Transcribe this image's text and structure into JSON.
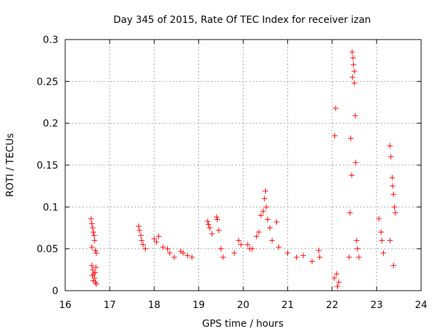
{
  "chart_data": {
    "type": "scatter",
    "title": "Day 345 of 2015, Rate Of TEC Index for receiver izan",
    "xlabel": "GPS time / hours",
    "ylabel": "ROTI / TECUs",
    "xlim": [
      16,
      24
    ],
    "ylim": [
      0,
      0.3
    ],
    "x_ticks": [
      16,
      17,
      18,
      19,
      20,
      21,
      22,
      23,
      24
    ],
    "y_ticks": [
      0,
      0.05,
      0.1,
      0.15,
      0.2,
      0.25,
      0.3
    ],
    "x_tick_labels": [
      "16",
      "17",
      "18",
      "19",
      "20",
      "21",
      "22",
      "23",
      "24"
    ],
    "y_tick_labels": [
      "0",
      "0.05",
      "0.1",
      "0.15",
      "0.2",
      "0.25",
      "0.3"
    ],
    "grid": true,
    "marker": "+",
    "marker_color": "#ff0000",
    "series": [
      {
        "name": "ROTI",
        "points": [
          [
            16.58,
            0.086
          ],
          [
            16.6,
            0.08
          ],
          [
            16.62,
            0.075
          ],
          [
            16.63,
            0.07
          ],
          [
            16.65,
            0.066
          ],
          [
            16.66,
            0.06
          ],
          [
            16.6,
            0.052
          ],
          [
            16.68,
            0.048
          ],
          [
            16.7,
            0.045
          ],
          [
            16.6,
            0.03
          ],
          [
            16.62,
            0.025
          ],
          [
            16.64,
            0.02
          ],
          [
            16.66,
            0.015
          ],
          [
            16.68,
            0.01
          ],
          [
            16.7,
            0.008
          ],
          [
            16.63,
            0.012
          ],
          [
            16.67,
            0.022
          ],
          [
            16.61,
            0.018
          ],
          [
            16.69,
            0.028
          ],
          [
            17.65,
            0.077
          ],
          [
            17.67,
            0.072
          ],
          [
            17.7,
            0.066
          ],
          [
            17.72,
            0.06
          ],
          [
            17.75,
            0.055
          ],
          [
            17.8,
            0.05
          ],
          [
            18.0,
            0.062
          ],
          [
            18.05,
            0.058
          ],
          [
            18.1,
            0.065
          ],
          [
            18.2,
            0.052
          ],
          [
            18.3,
            0.05
          ],
          [
            18.35,
            0.045
          ],
          [
            18.45,
            0.04
          ],
          [
            18.6,
            0.047
          ],
          [
            18.65,
            0.045
          ],
          [
            18.75,
            0.042
          ],
          [
            18.85,
            0.04
          ],
          [
            19.2,
            0.083
          ],
          [
            19.22,
            0.079
          ],
          [
            19.25,
            0.075
          ],
          [
            19.3,
            0.068
          ],
          [
            19.4,
            0.088
          ],
          [
            19.42,
            0.085
          ],
          [
            19.45,
            0.072
          ],
          [
            19.5,
            0.05
          ],
          [
            19.55,
            0.04
          ],
          [
            19.8,
            0.045
          ],
          [
            19.9,
            0.06
          ],
          [
            19.95,
            0.055
          ],
          [
            20.1,
            0.055
          ],
          [
            20.15,
            0.05
          ],
          [
            20.2,
            0.05
          ],
          [
            20.3,
            0.065
          ],
          [
            20.35,
            0.07
          ],
          [
            20.4,
            0.09
          ],
          [
            20.45,
            0.095
          ],
          [
            20.48,
            0.11
          ],
          [
            20.5,
            0.119
          ],
          [
            20.52,
            0.1
          ],
          [
            20.55,
            0.085
          ],
          [
            20.6,
            0.075
          ],
          [
            20.65,
            0.06
          ],
          [
            20.75,
            0.082
          ],
          [
            20.8,
            0.052
          ],
          [
            21.0,
            0.045
          ],
          [
            21.2,
            0.04
          ],
          [
            21.35,
            0.042
          ],
          [
            21.55,
            0.035
          ],
          [
            21.7,
            0.048
          ],
          [
            21.72,
            0.04
          ],
          [
            22.08,
            0.218
          ],
          [
            22.06,
            0.185
          ],
          [
            22.1,
            0.02
          ],
          [
            22.05,
            0.015
          ],
          [
            22.15,
            0.01
          ],
          [
            22.12,
            0.005
          ],
          [
            22.38,
            0.04
          ],
          [
            22.4,
            0.093
          ],
          [
            22.42,
            0.182
          ],
          [
            22.44,
            0.138
          ],
          [
            22.45,
            0.285
          ],
          [
            22.47,
            0.278
          ],
          [
            22.48,
            0.27
          ],
          [
            22.5,
            0.262
          ],
          [
            22.46,
            0.255
          ],
          [
            22.5,
            0.248
          ],
          [
            22.52,
            0.209
          ],
          [
            22.53,
            0.153
          ],
          [
            22.55,
            0.06
          ],
          [
            22.57,
            0.05
          ],
          [
            22.6,
            0.04
          ],
          [
            23.05,
            0.086
          ],
          [
            23.1,
            0.07
          ],
          [
            23.12,
            0.06
          ],
          [
            23.15,
            0.045
          ],
          [
            23.3,
            0.173
          ],
          [
            23.32,
            0.16
          ],
          [
            23.35,
            0.135
          ],
          [
            23.36,
            0.125
          ],
          [
            23.38,
            0.115
          ],
          [
            23.4,
            0.1
          ],
          [
            23.42,
            0.093
          ],
          [
            23.3,
            0.06
          ],
          [
            23.38,
            0.03
          ]
        ]
      }
    ]
  }
}
